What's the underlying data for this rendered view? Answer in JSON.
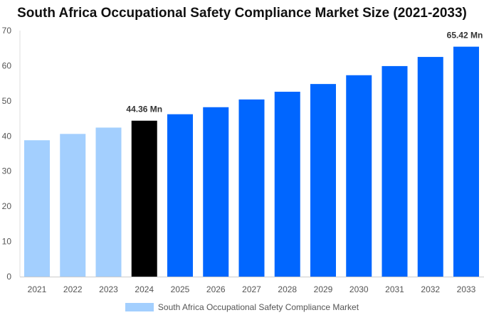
{
  "chart_data": {
    "type": "bar",
    "title": "South Africa Occupational Safety Compliance Market Size (2021-2033)",
    "categories": [
      "2021",
      "2022",
      "2023",
      "2024",
      "2025",
      "2026",
      "2027",
      "2028",
      "2029",
      "2030",
      "2031",
      "2032",
      "2033"
    ],
    "series": [
      {
        "name": "South Africa Occupational Safety Compliance Market",
        "values": [
          38.8,
          40.6,
          42.4,
          44.36,
          46.2,
          48.2,
          50.4,
          52.6,
          54.8,
          57.3,
          59.9,
          62.5,
          65.42
        ]
      }
    ],
    "data_labels": {
      "3": "44.36 Mn",
      "12": "65.42 Mn"
    },
    "ylim": [
      0,
      70
    ],
    "yticks": [
      0,
      10,
      20,
      30,
      40,
      50,
      60,
      70
    ],
    "grid": false,
    "legend_position": "bottom",
    "colors": {
      "historical": "#a3cffe",
      "base_year": "#000000",
      "forecast": "#0066ff"
    }
  }
}
